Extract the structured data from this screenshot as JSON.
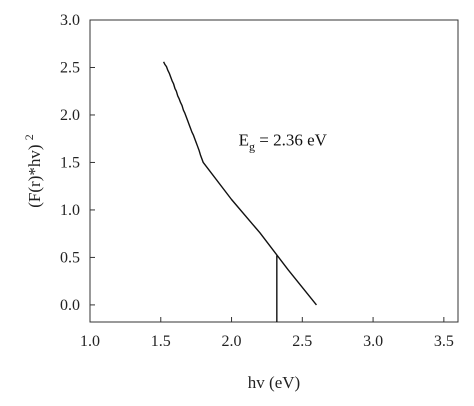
{
  "chart_data": {
    "type": "line",
    "title": "",
    "xlabel": "hv (eV)",
    "ylabel": "(F(r)*hv)",
    "ylabel_superscript": "2",
    "xlim": [
      1.0,
      3.6
    ],
    "ylim": [
      -0.18,
      3.0
    ],
    "xticks": [
      1.0,
      1.5,
      2.0,
      2.5,
      3.0,
      3.5
    ],
    "xtick_labels": [
      "1.0",
      "1.5",
      "2.0",
      "2.5",
      "3.0",
      "3.5"
    ],
    "yticks": [
      0.0,
      0.5,
      1.0,
      1.5,
      2.0,
      2.5,
      3.0
    ],
    "ytick_labels": [
      "0.0",
      "0.5",
      "1.0",
      "1.5",
      "2.0",
      "2.5",
      "3.0"
    ],
    "grid": false,
    "legend": "none",
    "series": [
      {
        "x": [
          1.52,
          1.53,
          1.54,
          1.55,
          1.56,
          1.57,
          1.58,
          1.59,
          1.6,
          1.61,
          1.62,
          1.63,
          1.64,
          1.65,
          1.66,
          1.67,
          1.68,
          1.69,
          1.7,
          1.71,
          1.72,
          1.73,
          1.74,
          1.75,
          1.76,
          1.77,
          1.78,
          1.8,
          2.0,
          2.2,
          2.4,
          2.6
        ],
        "values": [
          2.56,
          2.53,
          2.51,
          2.47,
          2.44,
          2.4,
          2.36,
          2.33,
          2.28,
          2.25,
          2.2,
          2.17,
          2.13,
          2.1,
          2.05,
          2.02,
          1.98,
          1.94,
          1.9,
          1.86,
          1.82,
          1.79,
          1.75,
          1.71,
          1.67,
          1.63,
          1.58,
          1.5,
          1.11,
          0.76,
          0.37,
          0.0
        ],
        "color": "#111111"
      }
    ],
    "annotations": [
      {
        "kind": "text",
        "base": "E",
        "subscript": "g",
        "rest": " = 2.36 eV",
        "x": 2.05,
        "y": 1.68
      },
      {
        "kind": "vline",
        "x": 2.32,
        "y_from": -0.18,
        "y_to": 0.52
      }
    ]
  }
}
